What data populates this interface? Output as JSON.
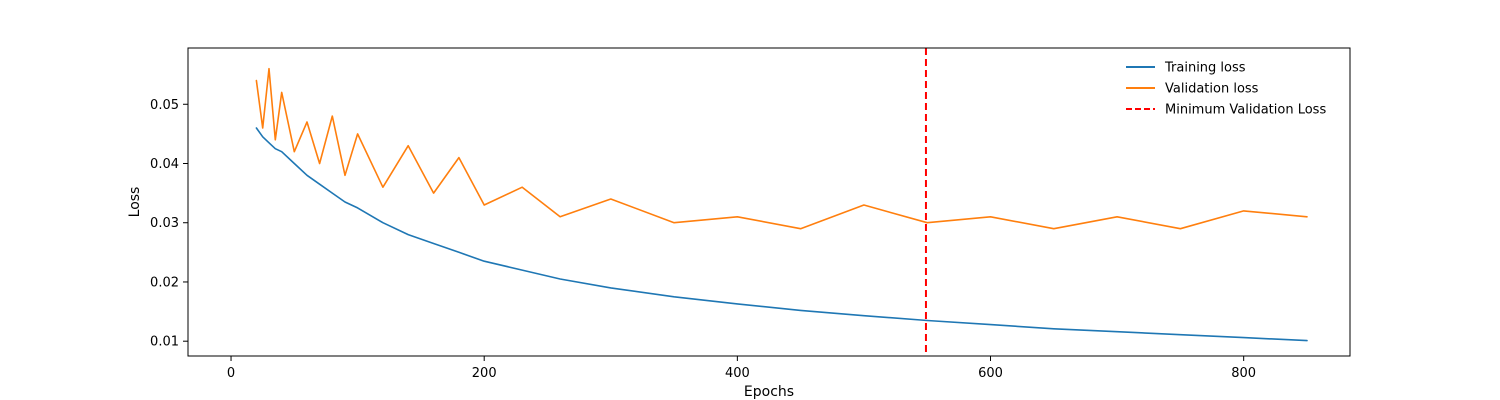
{
  "chart_data": {
    "type": "line",
    "title": "",
    "xlabel": "Epochs",
    "ylabel": "Loss",
    "xlim": [
      -34,
      884
    ],
    "ylim": [
      0.0075,
      0.0595
    ],
    "xticks": [
      0,
      200,
      400,
      600,
      800
    ],
    "yticks": [
      0.01,
      0.02,
      0.03,
      0.04,
      0.05
    ],
    "ytick_labels": [
      "0.01",
      "0.02",
      "0.03",
      "0.04",
      "0.05"
    ],
    "legend_position": "top-right",
    "series": [
      {
        "name": "Training loss",
        "color": "#1f77b4",
        "style": "solid",
        "x": [
          20,
          25,
          30,
          35,
          40,
          50,
          60,
          70,
          80,
          90,
          100,
          120,
          140,
          160,
          180,
          200,
          230,
          260,
          300,
          350,
          400,
          450,
          500,
          550,
          600,
          650,
          700,
          750,
          800,
          850
        ],
        "y": [
          0.046,
          0.0445,
          0.0435,
          0.0425,
          0.042,
          0.04,
          0.038,
          0.0365,
          0.035,
          0.0335,
          0.0325,
          0.03,
          0.028,
          0.0265,
          0.025,
          0.0235,
          0.022,
          0.0205,
          0.019,
          0.0175,
          0.0163,
          0.0152,
          0.0143,
          0.0135,
          0.0128,
          0.0121,
          0.0116,
          0.0111,
          0.0106,
          0.0101
        ]
      },
      {
        "name": "Validation loss",
        "color": "#ff7f0e",
        "style": "solid",
        "x": [
          20,
          25,
          30,
          35,
          40,
          50,
          60,
          70,
          80,
          90,
          100,
          120,
          140,
          160,
          180,
          200,
          230,
          260,
          300,
          350,
          400,
          450,
          500,
          550,
          600,
          650,
          700,
          750,
          800,
          850
        ],
        "y": [
          0.054,
          0.046,
          0.056,
          0.044,
          0.052,
          0.042,
          0.047,
          0.04,
          0.048,
          0.038,
          0.045,
          0.036,
          0.043,
          0.035,
          0.041,
          0.033,
          0.036,
          0.031,
          0.034,
          0.03,
          0.031,
          0.029,
          0.033,
          0.03,
          0.031,
          0.029,
          0.031,
          0.029,
          0.032,
          0.031
        ]
      }
    ],
    "reference_lines": [
      {
        "name": "Minimum Validation Loss",
        "x": 549,
        "color": "#ff0000",
        "style": "dashed"
      }
    ]
  }
}
